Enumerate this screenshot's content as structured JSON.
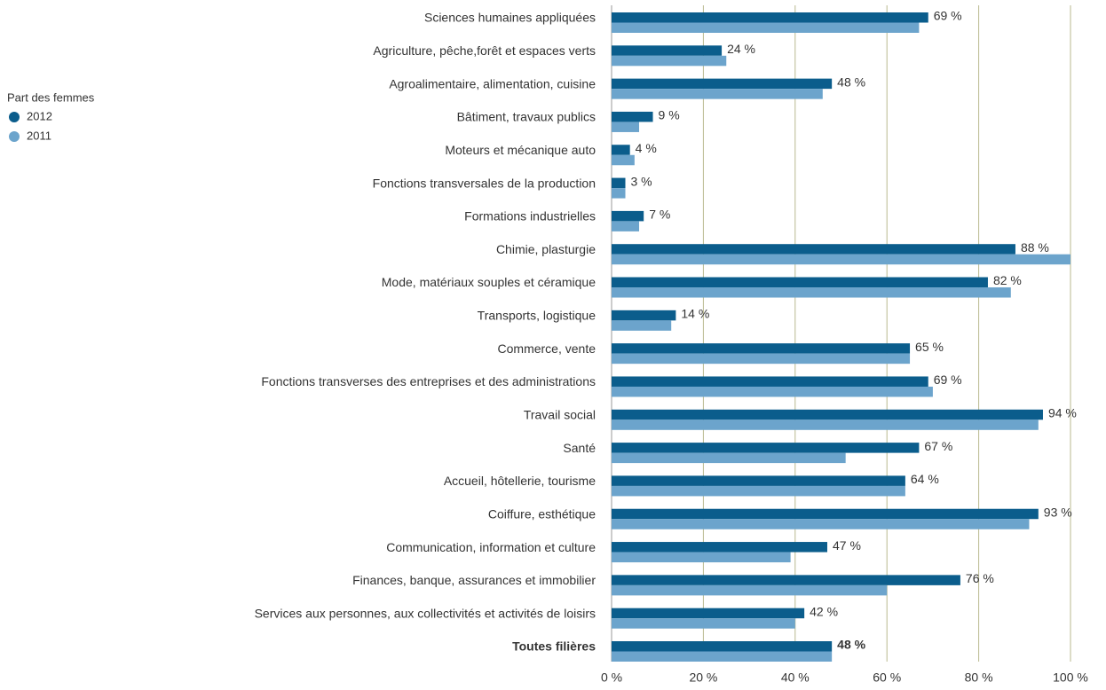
{
  "chart_data": {
    "type": "bar",
    "orientation": "horizontal",
    "legend_title": "Part des femmes",
    "categories": [
      "Sciences humaines appliquées",
      "Agriculture, pêche,forêt et espaces verts",
      "Agroalimentaire, alimentation, cuisine",
      "Bâtiment, travaux publics",
      "Moteurs et mécanique auto",
      "Fonctions transversales de la production",
      "Formations industrielles",
      "Chimie, plasturgie",
      "Mode, matériaux souples et céramique",
      "Transports, logistique",
      "Commerce, vente",
      "Fonctions transverses des entreprises et des administrations",
      "Travail social",
      "Santé",
      "Accueil, hôtellerie, tourisme",
      "Coiffure, esthétique",
      "Communication, information et culture",
      "Finances, banque, assurances et immobilier",
      "Services aux personnes, aux collectivités et activités de loisirs",
      "Toutes filières"
    ],
    "series": [
      {
        "name": "2012",
        "color": "#0b5d8c",
        "values": [
          69,
          24,
          48,
          9,
          4,
          3,
          7,
          88,
          82,
          14,
          65,
          69,
          94,
          67,
          64,
          93,
          47,
          76,
          42,
          48
        ],
        "value_labels": [
          "69 %",
          "24 %",
          "48 %",
          "9 %",
          "4 %",
          "3 %",
          "7 %",
          "88 %",
          "82 %",
          "14 %",
          "65 %",
          "69 %",
          "94 %",
          "67 %",
          "64 %",
          "93 %",
          "47 %",
          "76 %",
          "42 %",
          "48 %"
        ]
      },
      {
        "name": "2011",
        "color": "#6ca4cc",
        "values": [
          67,
          25,
          46,
          6,
          5,
          3,
          6,
          100,
          87,
          13,
          65,
          70,
          93,
          51,
          64,
          91,
          39,
          60,
          40,
          48
        ]
      }
    ],
    "xlim": [
      0,
      100
    ],
    "xticks": [
      {
        "value": 0,
        "label": "0 %"
      },
      {
        "value": 20,
        "label": "20 %"
      },
      {
        "value": 40,
        "label": "40 %"
      },
      {
        "value": 60,
        "label": "60 %"
      },
      {
        "value": 80,
        "label": "80 %"
      },
      {
        "value": 100,
        "label": "100 %"
      }
    ],
    "grid": true,
    "legend": "left"
  }
}
